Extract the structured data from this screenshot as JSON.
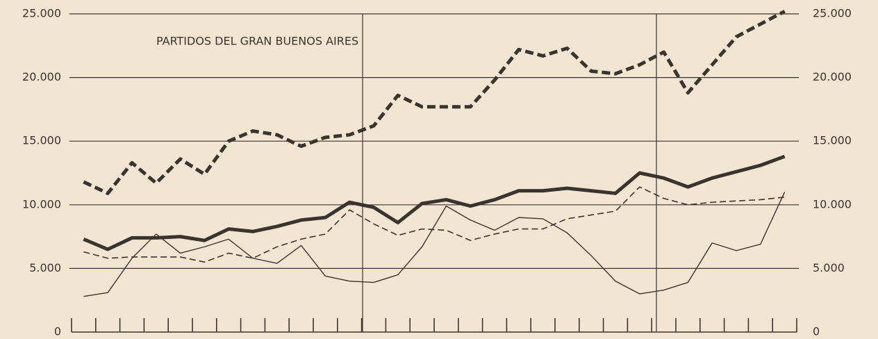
{
  "chart_data": {
    "type": "line",
    "title": "PARTIDOS DEL GRAN BUENOS AIRES",
    "categories": [
      null,
      null,
      null,
      null,
      null,
      null,
      null,
      null,
      null,
      null,
      null,
      null,
      null,
      null,
      null,
      null,
      null,
      null,
      null,
      null,
      null,
      null,
      null,
      null,
      null,
      null,
      null,
      null,
      null,
      null
    ],
    "series": [
      {
        "color": "#3a342e",
        "dash": true,
        "width": 5,
        "values": [
          11800,
          10900,
          13300,
          11700,
          13600,
          12400,
          15000,
          15800,
          15500,
          14600,
          15300,
          15500,
          16200,
          18600,
          17700,
          17700,
          17700,
          19800,
          22200,
          21700,
          22300,
          20500,
          20300,
          21000,
          22000,
          18800,
          21000,
          23200,
          24200,
          25200
        ]
      },
      {
        "color": "#3a342e",
        "dash": false,
        "width": 5,
        "values": [
          7300,
          6500,
          7400,
          7400,
          7500,
          7200,
          8100,
          7900,
          8300,
          8800,
          9000,
          10200,
          9800,
          8600,
          10100,
          10400,
          9900,
          10400,
          11100,
          11100,
          11300,
          11100,
          10900,
          12500,
          12100,
          11400,
          12100,
          12600,
          13100,
          13800
        ]
      },
      {
        "color": "#3a342e",
        "dash": true,
        "width": 1.6,
        "values": [
          6300,
          5800,
          5900,
          5900,
          5900,
          5500,
          6200,
          5800,
          6700,
          7300,
          7700,
          9600,
          8500,
          7600,
          8100,
          8000,
          7200,
          7700,
          8100,
          8100,
          8900,
          9200,
          9500,
          11400,
          10500,
          10000,
          10200,
          10300,
          10400,
          10600
        ]
      },
      {
        "color": "#3a342e",
        "dash": false,
        "width": 1.4,
        "values": [
          2800,
          3100,
          5800,
          7700,
          6200,
          6700,
          7300,
          5800,
          5400,
          6800,
          4400,
          4000,
          3900,
          4500,
          6700,
          9900,
          8800,
          8000,
          9000,
          8900,
          7800,
          6000,
          4000,
          3000,
          3300,
          3900,
          7000,
          6400,
          6900,
          11000
        ]
      }
    ],
    "ylim": [
      0,
      25000
    ],
    "yticks": [
      0,
      {
        "value": 5000,
        "label": "5.000"
      },
      {
        "value": 10000,
        "label": "10.000"
      },
      {
        "value": 15000,
        "label": "15.000"
      },
      {
        "value": 20000,
        "label": "20.000"
      },
      {
        "value": 25000,
        "label": "25.000"
      }
    ],
    "y2lim": [
      0,
      25000
    ],
    "y2ticks": [
      0,
      {
        "value": 5000,
        "label": "5.000"
      },
      {
        "value": 10000,
        "label": "10.000"
      },
      {
        "value": 15000,
        "label": "15.000"
      },
      {
        "value": 20000,
        "label": "20.000"
      },
      {
        "value": 25000,
        "label": "25.000"
      }
    ],
    "grid": true
  }
}
